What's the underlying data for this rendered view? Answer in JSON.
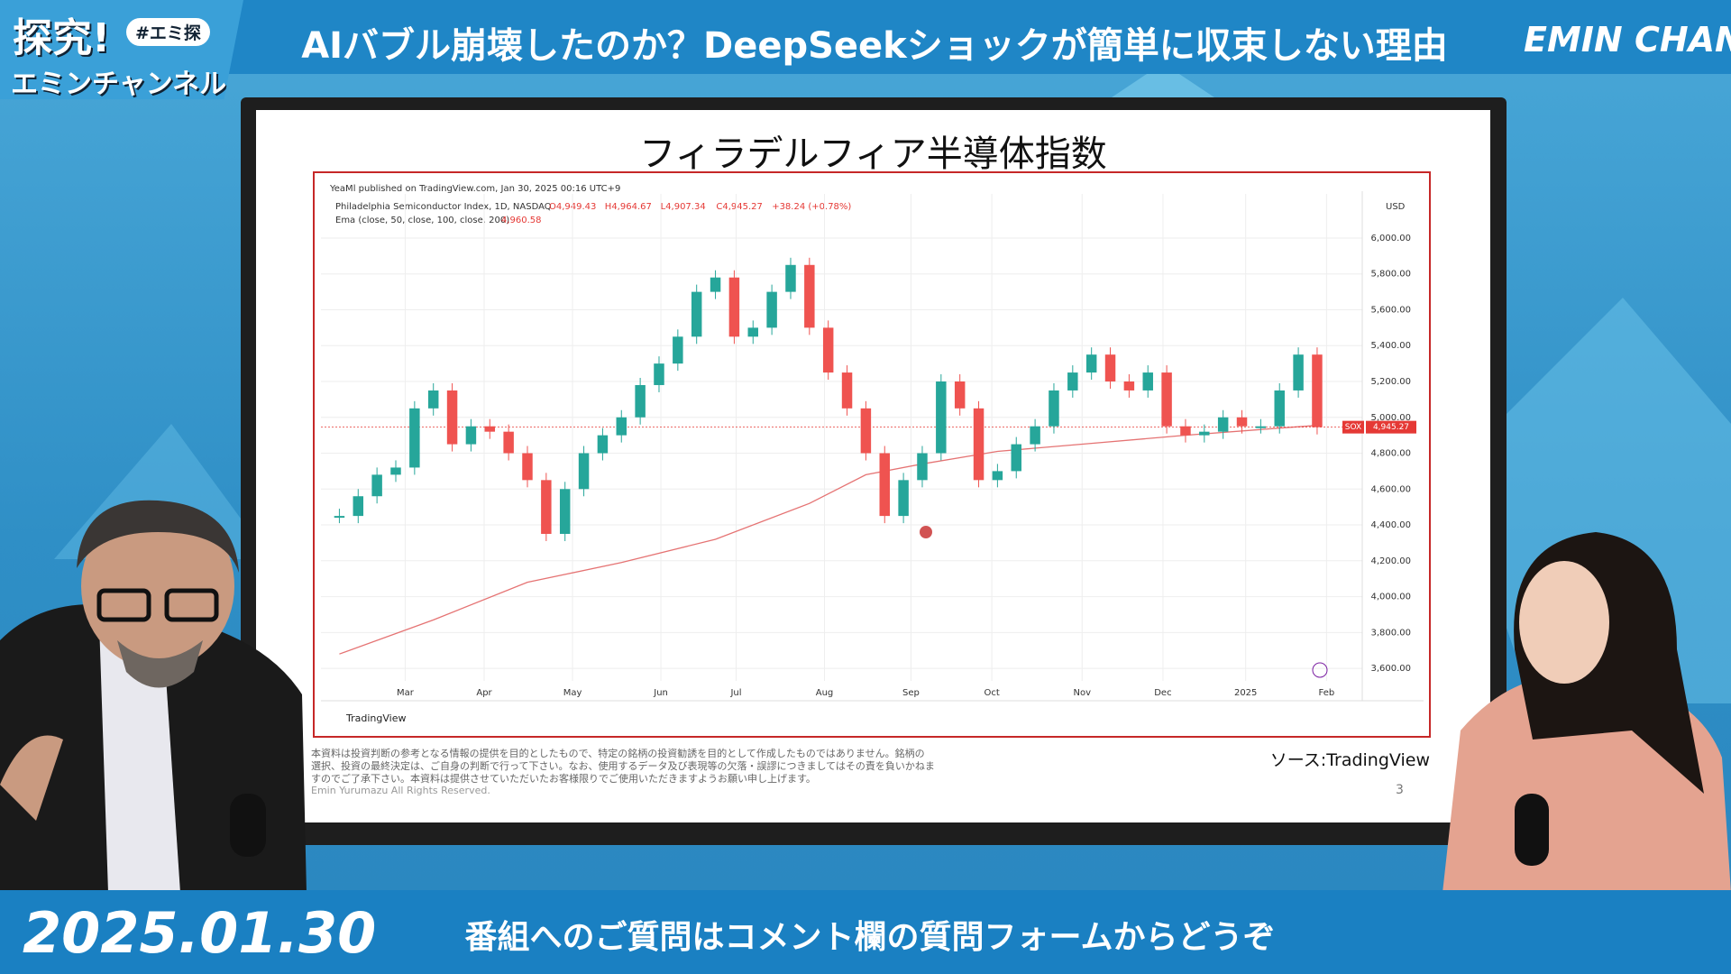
{
  "header": {
    "logo_top": "探究!",
    "logo_tag": "#エミ探",
    "logo_bottom": "エミンチャンネル",
    "title": "AIバブル崩壊したのか？DeepSeekショックが簡単に収束しない理由",
    "channel": "EMIN CHANNEL"
  },
  "slide": {
    "title": "フィラデルフィア半導体指数",
    "disclaimer": [
      "本資料は投資判断の参考となる情報の提供を目的としたもので、特定の銘柄の投資勧誘を目的として作成したものではありません。銘柄の",
      "選択、投資の最終決定は、ご自身の判断で行って下さい。なお、使用するデータ及び表現等の欠落・誤謬につきましてはその責を負いかねま",
      "すのでご了承下さい。本資料は提供させていただいたお客様限りでご使用いただきますようお願い申し上げます。"
    ],
    "copyright": "Emin Yurumazu All Rights Reserved.",
    "source": "ソース:TradingView",
    "page": "3"
  },
  "chart_data": {
    "type": "candlestick",
    "published": "YeaMl published on TradingView.com, Jan 30, 2025 00:16 UTC+9",
    "symbol": "Philadelphia Semiconductor Index, 1D, NASDAQ",
    "ohlc": [
      "O4,949.43",
      "H4,964.67",
      "L4,907.34",
      "C4,945.27",
      "+38.24 (+0.78%)"
    ],
    "ema_legend": "Ema (close, 50, close, 100, close, 200)",
    "ema_value": "4,960.58",
    "currency": "USD",
    "brand": "TradingView",
    "last": {
      "label": "SOX",
      "value": 4945.27,
      "value_label": "4,945.27",
      "color": "#e53935"
    },
    "up_color": "#26a69a",
    "down_color": "#ef5350",
    "x": [
      0,
      1,
      2,
      3,
      4,
      5,
      6,
      7,
      8,
      9,
      10,
      11,
      12,
      13,
      14,
      15,
      16,
      17,
      18,
      19,
      20,
      21,
      22,
      23,
      24,
      25,
      26,
      27,
      28,
      29,
      30,
      31,
      32,
      33,
      34,
      35,
      36,
      37,
      38,
      39,
      40,
      41,
      42,
      43,
      44,
      45,
      46,
      47,
      48,
      49,
      50,
      51,
      52
    ],
    "values": [
      4450,
      4560,
      4680,
      4720,
      5050,
      5150,
      4850,
      4950,
      4920,
      4800,
      4650,
      4350,
      4600,
      4800,
      4900,
      5000,
      5180,
      5300,
      5450,
      5700,
      5780,
      5450,
      5500,
      5700,
      5850,
      5500,
      5250,
      5050,
      4800,
      4450,
      4650,
      4800,
      5200,
      5050,
      4650,
      4700,
      4850,
      4950,
      5150,
      5250,
      5350,
      5200,
      5150,
      5250,
      4950,
      4900,
      4920,
      5000,
      4950,
      4950,
      5150,
      5350,
      4945
    ],
    "ema": {
      "x": [
        0,
        5,
        10,
        15,
        20,
        25,
        28,
        31,
        35,
        40,
        45,
        50,
        52
      ],
      "values": [
        3680,
        3870,
        4080,
        4190,
        4320,
        4520,
        4680,
        4740,
        4810,
        4855,
        4900,
        4940,
        4955
      ],
      "color": "#e57373"
    },
    "xlim": [
      -0.5,
      54.4
    ],
    "ylim": [
      3530,
      6196
    ],
    "xticks": [
      {
        "value": 3.5,
        "label": "Mar"
      },
      {
        "value": 7.7,
        "label": "Apr"
      },
      {
        "value": 12.4,
        "label": "May"
      },
      {
        "value": 17.1,
        "label": "Jun"
      },
      {
        "value": 21.1,
        "label": "Jul"
      },
      {
        "value": 25.8,
        "label": "Aug"
      },
      {
        "value": 30.4,
        "label": "Sep"
      },
      {
        "value": 34.7,
        "label": "Oct"
      },
      {
        "value": 39.5,
        "label": "Nov"
      },
      {
        "value": 43.8,
        "label": "Dec"
      },
      {
        "value": 48.2,
        "label": "2025"
      },
      {
        "value": 52.5,
        "label": "Feb"
      }
    ],
    "yticks": [
      {
        "value": 3600,
        "label": "3,600.00"
      },
      {
        "value": 3800,
        "label": "3,800.00"
      },
      {
        "value": 4000,
        "label": "4,000.00"
      },
      {
        "value": 4200,
        "label": "4,200.00"
      },
      {
        "value": 4400,
        "label": "4,400.00"
      },
      {
        "value": 4600,
        "label": "4,600.00"
      },
      {
        "value": 4800,
        "label": "4,800.00"
      },
      {
        "value": 5000,
        "label": "5,000.00"
      },
      {
        "value": 5200,
        "label": "5,200.00"
      },
      {
        "value": 5400,
        "label": "5,400.00"
      },
      {
        "value": 5600,
        "label": "5,600.00"
      },
      {
        "value": 5800,
        "label": "5,800.00"
      },
      {
        "value": 6000,
        "label": "6,000.00"
      }
    ],
    "grid": true
  },
  "footer": {
    "date": "2025.01.30",
    "message": "番組へのご質問はコメント欄の質問フォームからどうぞ"
  }
}
